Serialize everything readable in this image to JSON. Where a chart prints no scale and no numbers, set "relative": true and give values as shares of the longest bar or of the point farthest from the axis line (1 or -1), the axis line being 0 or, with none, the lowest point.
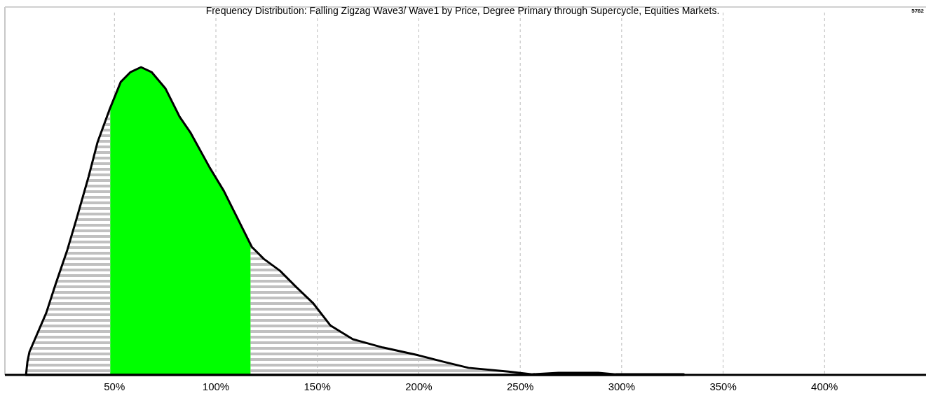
{
  "chart_data": {
    "type": "area",
    "title": "Frequency Distribution: Falling Zigzag Wave3/ Wave1 by Price, Degree Primary through Supercycle, Equities Markets.",
    "annotations": [
      "5782"
    ],
    "relative": true,
    "x": [
      6.4,
      7.1,
      8.1,
      16.4,
      20.9,
      26.8,
      31.3,
      37.2,
      41.7,
      47.5,
      53.1,
      57.9,
      63.1,
      68.3,
      75.2,
      82.1,
      87.6,
      97.0,
      103.9,
      110.8,
      117.7,
      123.6,
      131.5,
      139.5,
      147.8,
      156.4,
      167.5,
      182.3,
      199.6,
      212.1,
      224.5,
      244.2,
      256,
      268.8,
      288.5,
      297,
      330.6
    ],
    "series": [
      {
        "color": "#000000",
        "values": [
          0,
          0.043,
          0.075,
          0.202,
          0.293,
          0.407,
          0.507,
          0.643,
          0.757,
          0.861,
          0.952,
          0.984,
          1,
          0.984,
          0.93,
          0.839,
          0.786,
          0.673,
          0.598,
          0.507,
          0.416,
          0.377,
          0.339,
          0.286,
          0.234,
          0.161,
          0.116,
          0.089,
          0.064,
          0.043,
          0.023,
          0.011,
          0.002,
          0.007,
          0.007,
          0.002,
          0.002
        ]
      }
    ],
    "bands": [
      {
        "axis": "x",
        "from": 48,
        "to": 117,
        "color": "#00ff00"
      }
    ],
    "xlim": [
      -4,
      450
    ],
    "xticks": [
      {
        "value": 50,
        "label": "50%"
      },
      {
        "value": 100,
        "label": "100%"
      },
      {
        "value": 150,
        "label": "150%"
      },
      {
        "value": 200,
        "label": "200%"
      },
      {
        "value": 250,
        "label": "250%"
      },
      {
        "value": 300,
        "label": "300%"
      },
      {
        "value": 350,
        "label": "350%"
      },
      {
        "value": 400,
        "label": "400%"
      }
    ],
    "grid": "x",
    "line_style": "dashed"
  }
}
